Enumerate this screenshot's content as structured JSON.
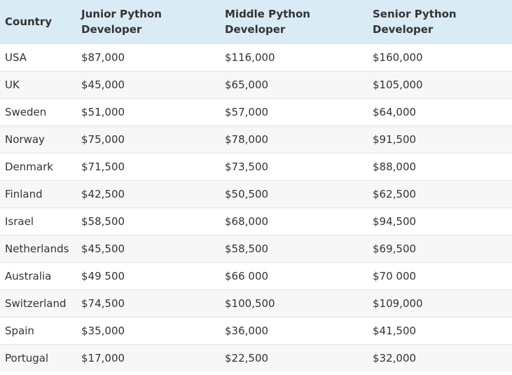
{
  "table": {
    "header": [
      "Country",
      "Junior Python Developer",
      "Middle Python Developer",
      "Senior Python Developer"
    ],
    "rows": [
      [
        "USA",
        "$87,000",
        "$116,000",
        "$160,000"
      ],
      [
        "UK",
        "$45,000",
        "$65,000",
        "$105,000"
      ],
      [
        "Sweden",
        "$51,000",
        "$57,000",
        "$64,000"
      ],
      [
        "Norway",
        "$75,000",
        "$78,000",
        "$91,500"
      ],
      [
        "Denmark",
        "$71,500",
        "$73,500",
        "$88,000"
      ],
      [
        "Finland",
        "$42,500",
        "$50,500",
        "$62,500"
      ],
      [
        "Israel",
        "$58,500",
        "$68,000",
        "$94,500"
      ],
      [
        "Netherlands",
        "$45,500",
        "$58,500",
        "$69,500"
      ],
      [
        "Australia",
        "$49 500",
        "$66 000",
        "$70 000"
      ],
      [
        "Switzerland",
        "$74,500",
        "$100,500",
        "$109,000"
      ],
      [
        "Spain",
        "$35,000",
        "$36,000",
        "$41,500"
      ],
      [
        "Portugal",
        "$17,000",
        "$22,500",
        "$32,000"
      ]
    ]
  }
}
